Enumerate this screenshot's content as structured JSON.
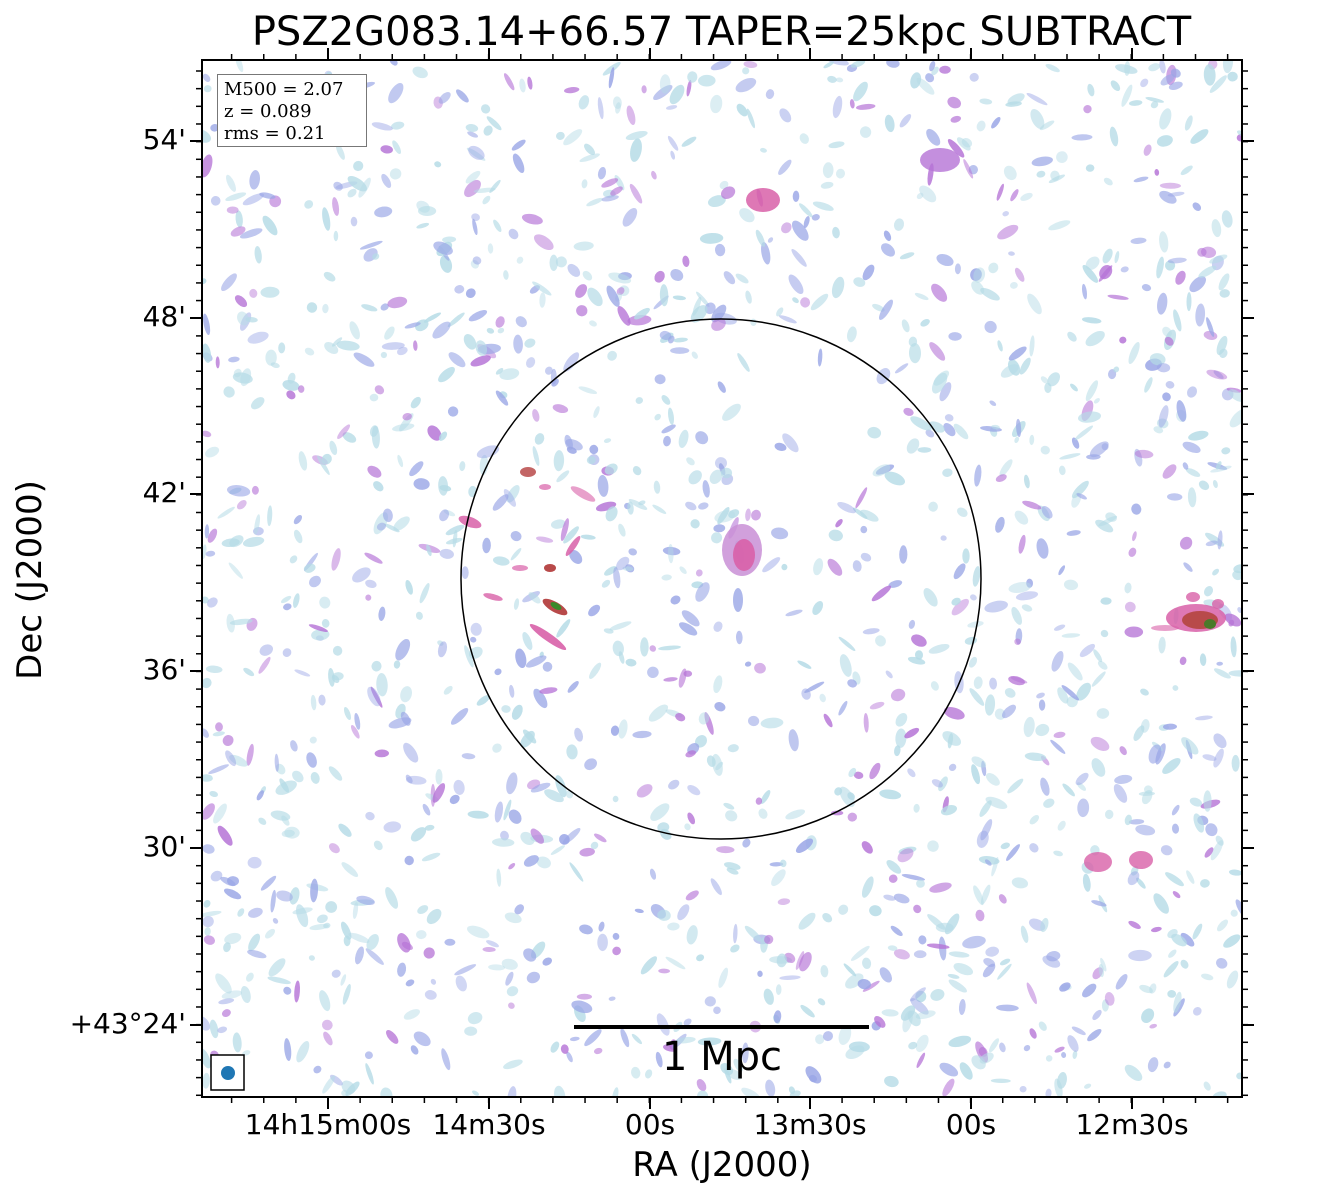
{
  "title": "PSZ2G083.14+66.57 TAPER=25kpc SUBTRACT",
  "axes": {
    "xlabel": "RA (J2000)",
    "ylabel": "Dec (J2000)",
    "xticks": [
      "14h15m00s",
      "14m30s",
      "00s",
      "13m30s",
      "00s",
      "12m30s"
    ],
    "yticks": [
      "54'",
      "48'",
      "42'",
      "36'",
      "30'",
      "+43°24'"
    ]
  },
  "info": {
    "m500": "M500 = 2.07",
    "z": "z = 0.089",
    "rms": "rms = 0.21"
  },
  "scalebar": {
    "label": "1 Mpc"
  },
  "colors": {
    "noise_light": "#b5dbe6",
    "noise_blue": "#9aa6e6",
    "emission_purple": "#b573d6",
    "emission_pink": "#d860a8",
    "emission_red": "#b84a4a",
    "emission_green": "#3a8a2a",
    "beam": "#1f77b4",
    "frame": "#000000"
  }
}
